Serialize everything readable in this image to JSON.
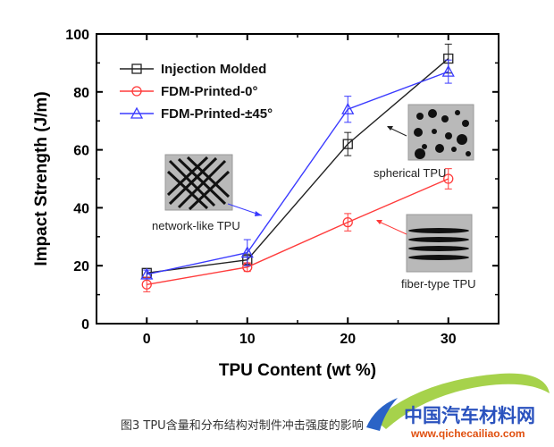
{
  "chart_data": {
    "type": "line",
    "xlabel": "TPU Content (wt %)",
    "ylabel": "Impact Strength (J/m)",
    "x": [
      0,
      10,
      20,
      30
    ],
    "xticks": [
      "0",
      "10",
      "20",
      "30"
    ],
    "xlim": [
      -5,
      35
    ],
    "ylim": [
      0,
      100
    ],
    "yticks": [
      0,
      20,
      40,
      60,
      80,
      100
    ],
    "legend_position": "top-left",
    "grid": false,
    "series": [
      {
        "name": "Injection Molded",
        "marker": "square",
        "color": "#222222",
        "values": [
          17.5,
          22,
          62,
          91.5
        ],
        "errors": [
          1.5,
          2,
          4,
          5
        ]
      },
      {
        "name": "FDM-Printed-0°",
        "marker": "circle",
        "color": "#ff3b3b",
        "values": [
          13.5,
          19.5,
          35,
          50
        ],
        "errors": [
          2.5,
          1.5,
          3,
          3.5
        ]
      },
      {
        "name": "FDM-Printed-±45°",
        "marker": "triangle",
        "color": "#3a3aff",
        "values": [
          17,
          24.5,
          74,
          87
        ],
        "errors": [
          1.5,
          4.5,
          4.5,
          4
        ]
      }
    ],
    "annotations": [
      {
        "label": "network-like TPU",
        "image": "network-like-tpu-inset"
      },
      {
        "label": "spherical TPU",
        "image": "spherical-tpu-inset"
      },
      {
        "label": "fiber-type TPU",
        "image": "fiber-type-tpu-inset"
      }
    ]
  },
  "caption": "图3 TPU含量和分布结构对制件冲击强度的影响",
  "watermark": {
    "text": "中国汽车材料网",
    "url": "www.qichecailiao.com"
  }
}
